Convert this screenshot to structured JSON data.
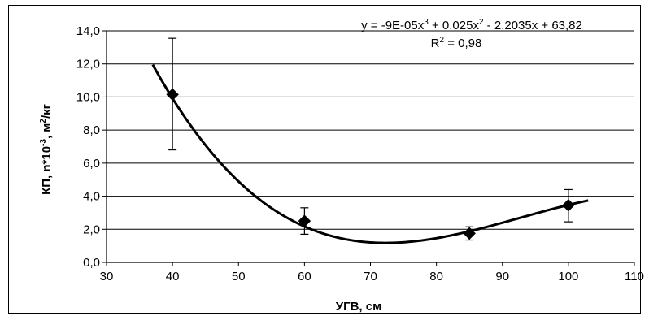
{
  "chart_data": {
    "type": "scatter",
    "xlabel": "УГВ, см",
    "ylabel_parts": {
      "a": "КП, n*10",
      "a_sup": "-3",
      "b": ", м",
      "b_sup": "2",
      "c": "/кг"
    },
    "xlim": [
      30,
      110
    ],
    "ylim": [
      0,
      14
    ],
    "x_ticks": [
      "30",
      "40",
      "50",
      "60",
      "70",
      "80",
      "90",
      "100",
      "110"
    ],
    "y_ticks": [
      "0,0",
      "2,0",
      "4,0",
      "6,0",
      "8,0",
      "10,0",
      "12,0",
      "14,0"
    ],
    "grid": "horizontal",
    "marker": "diamond",
    "points": [
      {
        "x": 40,
        "y": 10.15,
        "err_low": 6.8,
        "err_high": 13.55
      },
      {
        "x": 60,
        "y": 2.5,
        "err_low": 1.7,
        "err_high": 3.3
      },
      {
        "x": 85,
        "y": 1.75,
        "err_low": 1.35,
        "err_high": 2.15
      },
      {
        "x": 100,
        "y": 3.45,
        "err_low": 2.45,
        "err_high": 4.4
      }
    ],
    "trendline": {
      "coefficients": [
        -9e-05,
        0.025,
        -2.2035,
        63.82
      ],
      "x_range": [
        37,
        103
      ],
      "equation_parts": {
        "a": "y = -9E-05x",
        "a_sup": "3",
        "b": " + 0,025x",
        "b_sup": "2",
        "c": " - 2,2035x + 63,82"
      },
      "r2_parts": {
        "a": "R",
        "a_sup": "2",
        "b": " = 0,98"
      }
    }
  }
}
